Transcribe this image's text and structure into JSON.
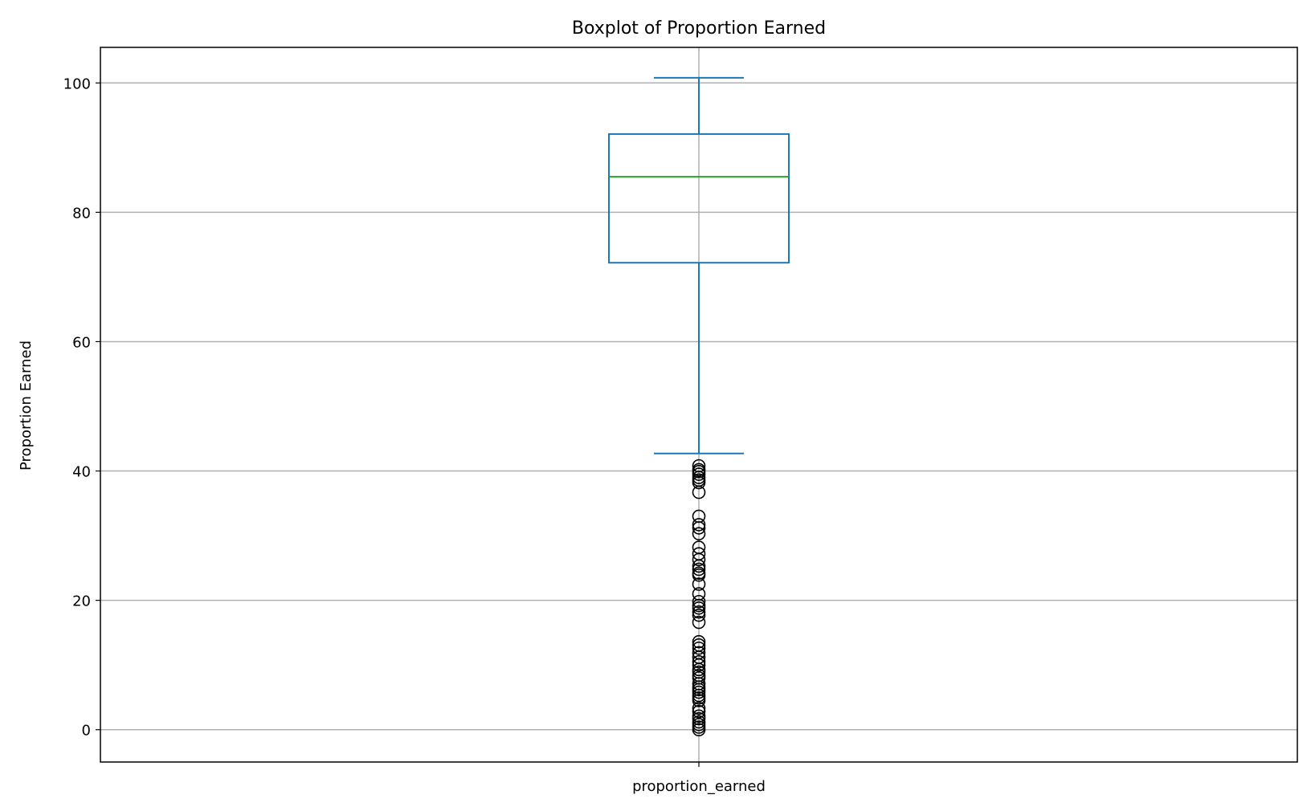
{
  "chart_data": {
    "type": "box",
    "title": "Boxplot of Proportion Earned",
    "xlabel": "",
    "ylabel": "Proportion Earned",
    "categories": [
      "proportion_earned"
    ],
    "ylim": [
      -5,
      105.5
    ],
    "yticks": [
      0,
      20,
      40,
      60,
      80,
      100
    ],
    "grid": true,
    "box": {
      "whisker_low": 42.7,
      "q1": 72.2,
      "median": 85.5,
      "q3": 92.1,
      "whisker_high": 100.8
    },
    "outliers": [
      40.8,
      40.2,
      39.9,
      39.5,
      39.0,
      38.6,
      38.2,
      36.7,
      33.0,
      31.7,
      31.2,
      30.3,
      28.2,
      27.2,
      26.3,
      25.3,
      24.8,
      24.2,
      23.9,
      22.5,
      21.0,
      19.8,
      19.2,
      18.8,
      18.2,
      17.7,
      16.6,
      13.6,
      13.1,
      12.6,
      11.9,
      11.2,
      10.5,
      10.0,
      9.3,
      8.9,
      8.4,
      8.0,
      7.1,
      6.6,
      6.2,
      5.8,
      5.3,
      4.9,
      4.5,
      3.3,
      2.8,
      2.1,
      1.7,
      1.2,
      0.8,
      0.4,
      0.0
    ],
    "colors": {
      "box": "#1f77b4",
      "median": "#2ca02c",
      "grid": "#b0b0b0",
      "outlier": "#000000"
    }
  }
}
